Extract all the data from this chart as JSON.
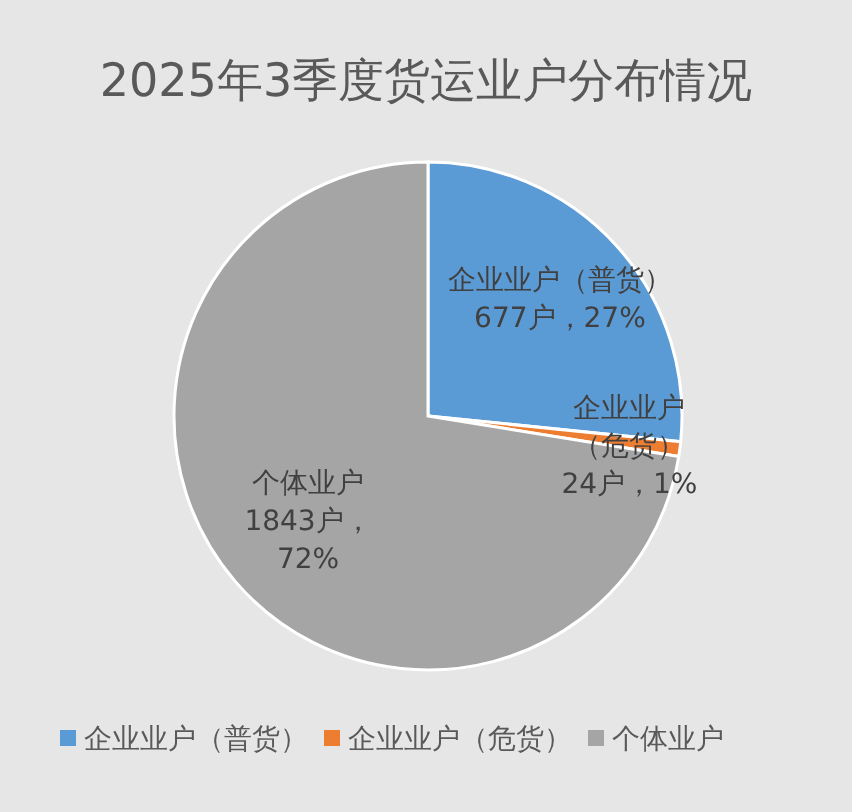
{
  "chart_data": {
    "type": "pie",
    "title": "2025年3季度货运业户分布情况",
    "categories": [
      "企业业户（普货）",
      "企业业户（危货）",
      "个体业户"
    ],
    "values": [
      677,
      24,
      1843
    ],
    "colors": [
      "#5b9bd5",
      "#ed7d31",
      "#a5a5a5"
    ],
    "value_labels": [
      "企业业户（普货）677户，27%",
      "企业业户（危货）24户，1%",
      "个体业户1843户，72%"
    ],
    "legend": "bottom"
  }
}
